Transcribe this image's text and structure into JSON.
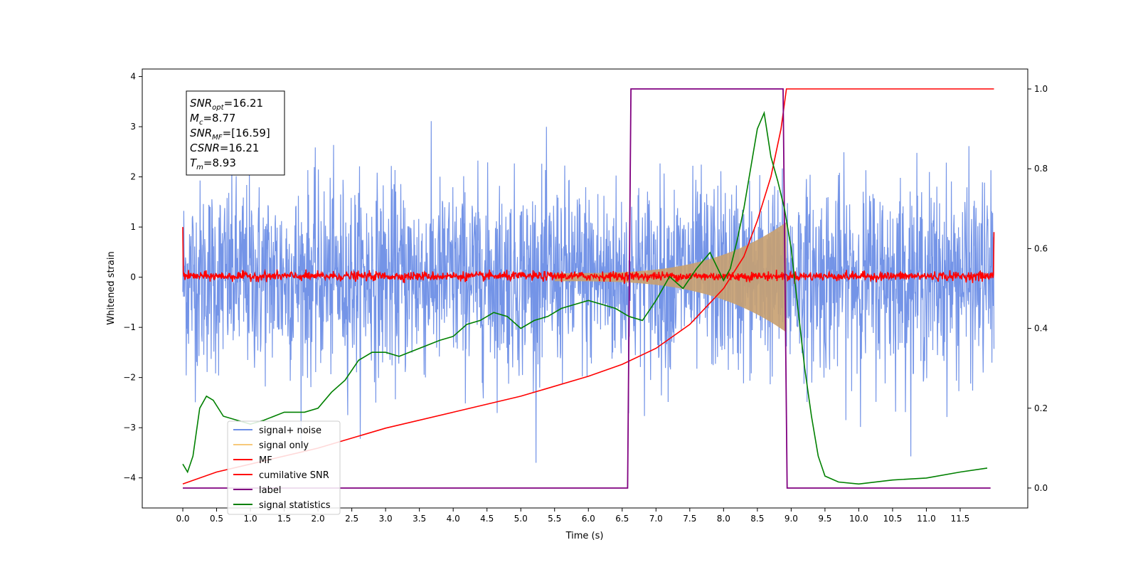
{
  "chart_data": {
    "type": "line",
    "xlabel": "Time (s)",
    "ylabel": "Whitened strain",
    "xlim": [
      -0.6,
      12.5
    ],
    "ylim": [
      -4.6,
      4.15
    ],
    "y2lim": [
      -0.05,
      1.05
    ],
    "x_ticks": [
      "0.0",
      "0.5",
      "1.0",
      "1.5",
      "2.0",
      "2.5",
      "3.0",
      "3.5",
      "4.0",
      "4.5",
      "5.0",
      "5.5",
      "6.0",
      "6.5",
      "7.0",
      "7.5",
      "8.0",
      "8.5",
      "9.0",
      "9.5",
      "10.0",
      "10.5",
      "11.0",
      "11.5"
    ],
    "y_ticks": [
      "4",
      "3",
      "2",
      "1",
      "0",
      "−1",
      "−2",
      "−3",
      "−4"
    ],
    "y2_ticks": [
      "1.0",
      "0.8",
      "0.6",
      "0.4",
      "0.2",
      "0.0"
    ],
    "stats_box": [
      {
        "base": "SNR",
        "sub": "opt",
        "value": "=16.21"
      },
      {
        "base": "M",
        "sub": "c",
        "value": "=8.77"
      },
      {
        "base": "SNR",
        "sub": "MF",
        "value": "=[16.59]"
      },
      {
        "base": "CSNR",
        "sub": "",
        "value": "=16.21"
      },
      {
        "base": "T",
        "sub": "m",
        "value": "=8.93"
      }
    ],
    "legend": [
      {
        "label": "signal+ noise",
        "color": "#6d8ee6"
      },
      {
        "label": "signal only",
        "color": "#f7c97a"
      },
      {
        "label": "MF",
        "color": "#ff0000"
      },
      {
        "label": "cumilative SNR",
        "color": "#ff0000"
      },
      {
        "label": "label",
        "color": "#800080"
      },
      {
        "label": "signal statistics",
        "color": "#008000"
      }
    ],
    "legend_position": "lower-left",
    "series": [
      {
        "name": "signal+ noise",
        "color": "#6d8ee6",
        "axis": "left",
        "description_range": [
          -3.7,
          3.4
        ],
        "x_range": [
          0.0,
          12.0
        ]
      },
      {
        "name": "signal only",
        "color": "#c8a070",
        "axis": "left",
        "chirp_start": 5.5,
        "chirp_end": 8.93,
        "peak_amplitude": 1.1
      },
      {
        "name": "MF",
        "color": "#ff0000",
        "axis": "left",
        "x_range": [
          0.0,
          12.0
        ],
        "typical_range": [
          -0.1,
          0.15
        ]
      },
      {
        "name": "cumilative SNR",
        "color": "#ff0000",
        "axis": "right",
        "x": [
          0.0,
          0.5,
          1.0,
          2.0,
          3.0,
          4.0,
          5.0,
          6.0,
          6.5,
          7.0,
          7.5,
          8.0,
          8.3,
          8.5,
          8.7,
          8.85,
          8.93,
          9.0,
          12.0
        ],
        "y": [
          0.01,
          0.04,
          0.06,
          0.1,
          0.15,
          0.19,
          0.23,
          0.28,
          0.31,
          0.35,
          0.41,
          0.5,
          0.58,
          0.67,
          0.78,
          0.9,
          1.0,
          1.0,
          1.0
        ]
      },
      {
        "name": "label",
        "color": "#800080",
        "axis": "right",
        "x": [
          0.0,
          6.58,
          6.63,
          8.88,
          8.94,
          11.95
        ],
        "y": [
          0.0,
          0.0,
          1.0,
          1.0,
          0.0,
          0.0
        ]
      },
      {
        "name": "signal statistics",
        "color": "#008000",
        "axis": "right",
        "x": [
          0.0,
          0.07,
          0.15,
          0.25,
          0.35,
          0.45,
          0.6,
          0.8,
          1.0,
          1.2,
          1.5,
          1.8,
          2.0,
          2.2,
          2.4,
          2.6,
          2.8,
          3.0,
          3.2,
          3.5,
          3.8,
          4.0,
          4.2,
          4.4,
          4.6,
          4.8,
          5.0,
          5.2,
          5.4,
          5.6,
          5.8,
          6.0,
          6.2,
          6.4,
          6.6,
          6.8,
          7.0,
          7.2,
          7.4,
          7.6,
          7.8,
          8.0,
          8.1,
          8.2,
          8.3,
          8.4,
          8.5,
          8.6,
          8.7,
          8.8,
          8.9,
          9.0,
          9.1,
          9.2,
          9.3,
          9.4,
          9.5,
          9.7,
          10.0,
          10.5,
          11.0,
          11.5,
          11.9
        ],
        "y": [
          0.06,
          0.04,
          0.08,
          0.2,
          0.23,
          0.22,
          0.18,
          0.17,
          0.16,
          0.17,
          0.19,
          0.19,
          0.2,
          0.24,
          0.27,
          0.32,
          0.34,
          0.34,
          0.33,
          0.35,
          0.37,
          0.38,
          0.41,
          0.42,
          0.44,
          0.43,
          0.4,
          0.42,
          0.43,
          0.45,
          0.46,
          0.47,
          0.46,
          0.45,
          0.43,
          0.42,
          0.47,
          0.53,
          0.5,
          0.55,
          0.59,
          0.52,
          0.55,
          0.62,
          0.7,
          0.8,
          0.9,
          0.94,
          0.83,
          0.77,
          0.7,
          0.6,
          0.45,
          0.3,
          0.18,
          0.08,
          0.03,
          0.015,
          0.01,
          0.02,
          0.025,
          0.04,
          0.05
        ]
      }
    ]
  }
}
